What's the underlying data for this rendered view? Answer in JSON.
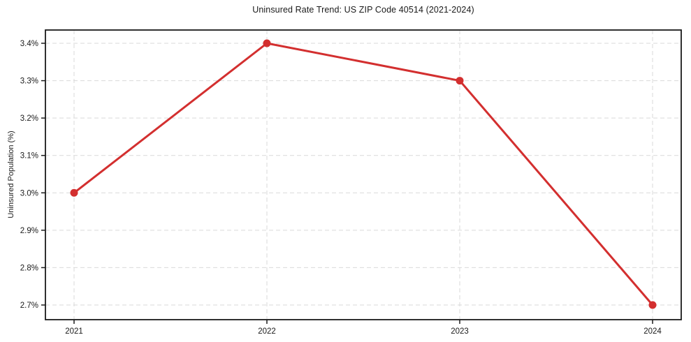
{
  "chart_data": {
    "type": "line",
    "title": "Uninsured Rate Trend: US ZIP Code 40514 (2021-2024)",
    "xlabel": "",
    "ylabel": "Uninsured Population (%)",
    "x": [
      "2021",
      "2022",
      "2023",
      "2024"
    ],
    "values": [
      3.0,
      3.4,
      3.3,
      2.7
    ],
    "ylim": [
      2.7,
      3.4
    ],
    "ytick_values": [
      2.7,
      2.8,
      2.9,
      3.0,
      3.1,
      3.2,
      3.3,
      3.4
    ],
    "ytick_labels": [
      "2.7%",
      "2.8%",
      "2.9%",
      "3.0%",
      "3.1%",
      "3.2%",
      "3.3%",
      "3.4%"
    ],
    "grid": "dashed",
    "legend": "none",
    "colors": {
      "line": "#d32f2f",
      "marker": "#d32f2f",
      "grid": "#d9d9d9",
      "axis": "#1a1a1a",
      "text": "#1a1a1a",
      "background": "#ffffff"
    }
  }
}
